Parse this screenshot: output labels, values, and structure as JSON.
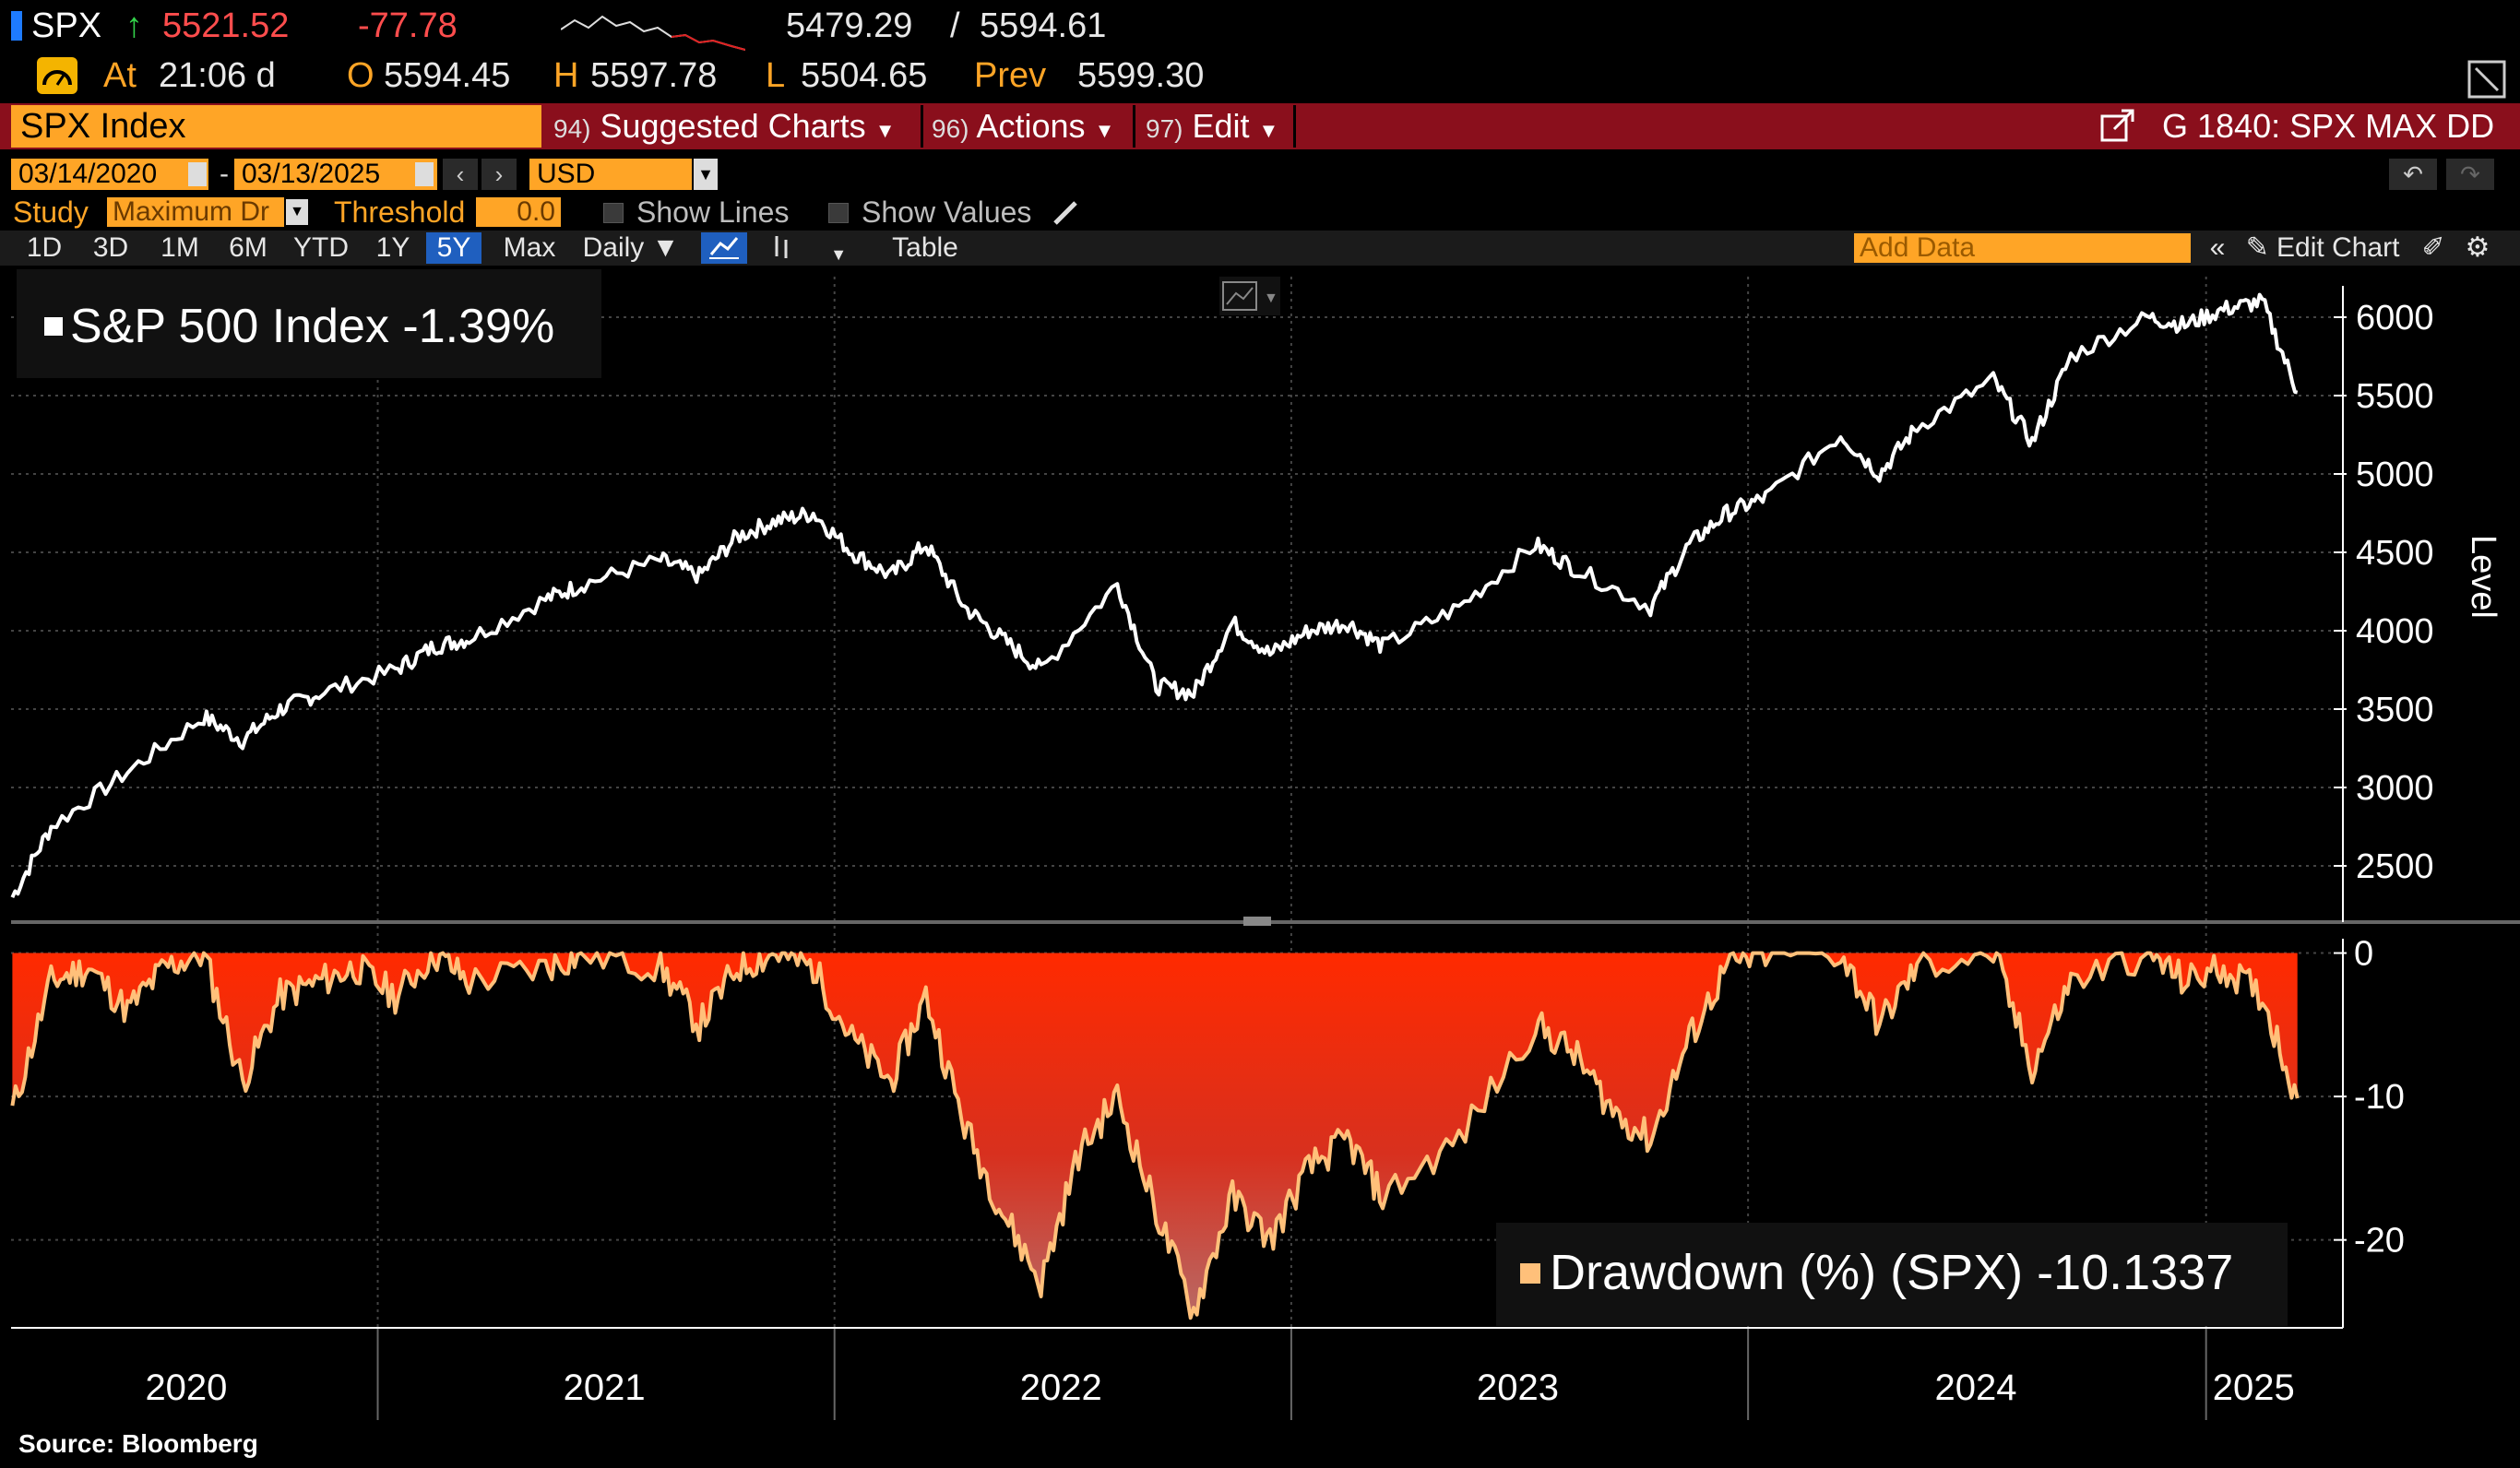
{
  "header": {
    "ticker": "SPX",
    "arrow": "↑",
    "last_price": "5521.52",
    "net_change": "-77.78",
    "range_low": "5479.29",
    "range_sep": "/",
    "range_high": "5594.61",
    "at_label": "At",
    "time": "21:06 d",
    "open_label": "O",
    "open": "5594.45",
    "high_label": "H",
    "high": "5597.78",
    "low_label": "L",
    "low": "5504.65",
    "prev_label": "Prev",
    "prev": "5599.30"
  },
  "menu": {
    "security": "SPX Index",
    "suggested_key": "94)",
    "suggested": "Suggested Charts",
    "actions_key": "96)",
    "actions": "Actions",
    "edit_key": "97)",
    "edit": "Edit",
    "function_title": "G 1840: SPX MAX DD"
  },
  "controls": {
    "start_date": "03/14/2020",
    "end_date": "03/13/2025",
    "date_sep": "-",
    "currency": "USD",
    "study_label": "Study",
    "study_value": "Maximum Dr",
    "threshold_label": "Threshold",
    "threshold_value": "0.0",
    "show_lines": "Show Lines",
    "show_values": "Show Values"
  },
  "toolbar": {
    "ranges": [
      "1D",
      "3D",
      "1M",
      "6M",
      "YTD",
      "1Y",
      "5Y",
      "Max"
    ],
    "active_range": "5Y",
    "frequency": "Daily",
    "table": "Table",
    "add_data_placeholder": "Add Data",
    "edit_chart": "Edit Chart"
  },
  "chart_data": [
    {
      "type": "line",
      "legend": "S&P 500 Index -1.39%",
      "ylabel": "Level",
      "yticks": [
        2500,
        3000,
        3500,
        4000,
        4500,
        5000,
        5500,
        6000
      ],
      "ylim": [
        2200,
        6200
      ],
      "x_years": [
        "2020",
        "2021",
        "2022",
        "2023",
        "2024",
        "2025"
      ],
      "series": [
        {
          "x": [
            "2020-03",
            "2020-04",
            "2020-06",
            "2020-08",
            "2020-09",
            "2020-10",
            "2020-11",
            "2021-01",
            "2021-02",
            "2021-03",
            "2021-05",
            "2021-06",
            "2021-08",
            "2021-09",
            "2021-10",
            "2021-11",
            "2021-12",
            "2022-01",
            "2022-02",
            "2022-03",
            "2022-04",
            "2022-05",
            "2022-06",
            "2022-08",
            "2022-09",
            "2022-10",
            "2022-11",
            "2022-12",
            "2023-01",
            "2023-02",
            "2023-03",
            "2023-05",
            "2023-07",
            "2023-08",
            "2023-10",
            "2023-11",
            "2023-12",
            "2024-01",
            "2024-03",
            "2024-04",
            "2024-05",
            "2024-07",
            "2024-08",
            "2024-09",
            "2024-11",
            "2024-12",
            "2025-01",
            "2025-02",
            "2025-03"
          ],
          "values": [
            2300,
            2750,
            3100,
            3450,
            3300,
            3500,
            3600,
            3750,
            3900,
            3950,
            4200,
            4300,
            4450,
            4350,
            4600,
            4700,
            4750,
            4500,
            4350,
            4550,
            4150,
            3950,
            3750,
            4300,
            3650,
            3600,
            4050,
            3850,
            4000,
            4050,
            3900,
            4150,
            4550,
            4400,
            4150,
            4550,
            4750,
            4850,
            5250,
            5000,
            5300,
            5600,
            5200,
            5750,
            6000,
            5950,
            6050,
            6100,
            5520
          ]
        }
      ]
    },
    {
      "type": "area",
      "legend": "Drawdown (%) (SPX) -10.1337",
      "yticks": [
        0,
        -10,
        -20
      ],
      "ylim": [
        -26,
        1
      ],
      "series": [
        {
          "x": [
            "2020-03",
            "2020-04",
            "2020-05",
            "2020-06",
            "2020-07",
            "2020-08",
            "2020-09",
            "2020-10",
            "2020-11",
            "2020-12",
            "2021-01",
            "2021-02",
            "2021-03",
            "2021-05",
            "2021-06",
            "2021-08",
            "2021-09",
            "2021-10",
            "2021-11",
            "2021-12",
            "2022-01",
            "2022-02",
            "2022-03",
            "2022-04",
            "2022-05",
            "2022-06",
            "2022-07",
            "2022-08",
            "2022-09",
            "2022-10",
            "2022-11",
            "2022-12",
            "2023-01",
            "2023-02",
            "2023-03",
            "2023-05",
            "2023-07",
            "2023-08",
            "2023-09",
            "2023-10",
            "2023-11",
            "2023-12",
            "2024-01",
            "2024-03",
            "2024-04",
            "2024-05",
            "2024-07",
            "2024-08",
            "2024-09",
            "2024-11",
            "2024-12",
            "2025-01",
            "2025-02",
            "2025-03"
          ],
          "values": [
            -11,
            -2,
            -1,
            -4,
            -1,
            0,
            -9,
            -3,
            -2,
            -1,
            -3,
            0,
            -2,
            -1,
            0,
            -1,
            -5,
            -1,
            0,
            -1,
            -6,
            -9,
            -3,
            -12,
            -18,
            -23,
            -14,
            -10,
            -18,
            -25,
            -17,
            -20,
            -15,
            -13,
            -17,
            -13,
            -5,
            -7,
            -11,
            -13,
            -6,
            -1,
            0,
            0,
            -5,
            -1,
            0,
            -8,
            -2,
            0,
            -2,
            -1,
            -3,
            -10.13
          ]
        }
      ]
    }
  ],
  "footer": {
    "source": "Source:  Bloomberg"
  },
  "colors": {
    "brand_orange": "#ffa526",
    "menu_red": "#8a0f1c",
    "up_green": "#33d14a",
    "down_red": "#ff4d4d",
    "drawdown_line": "#ffc07a",
    "drawdown_fill_top": "#ff2a00"
  }
}
